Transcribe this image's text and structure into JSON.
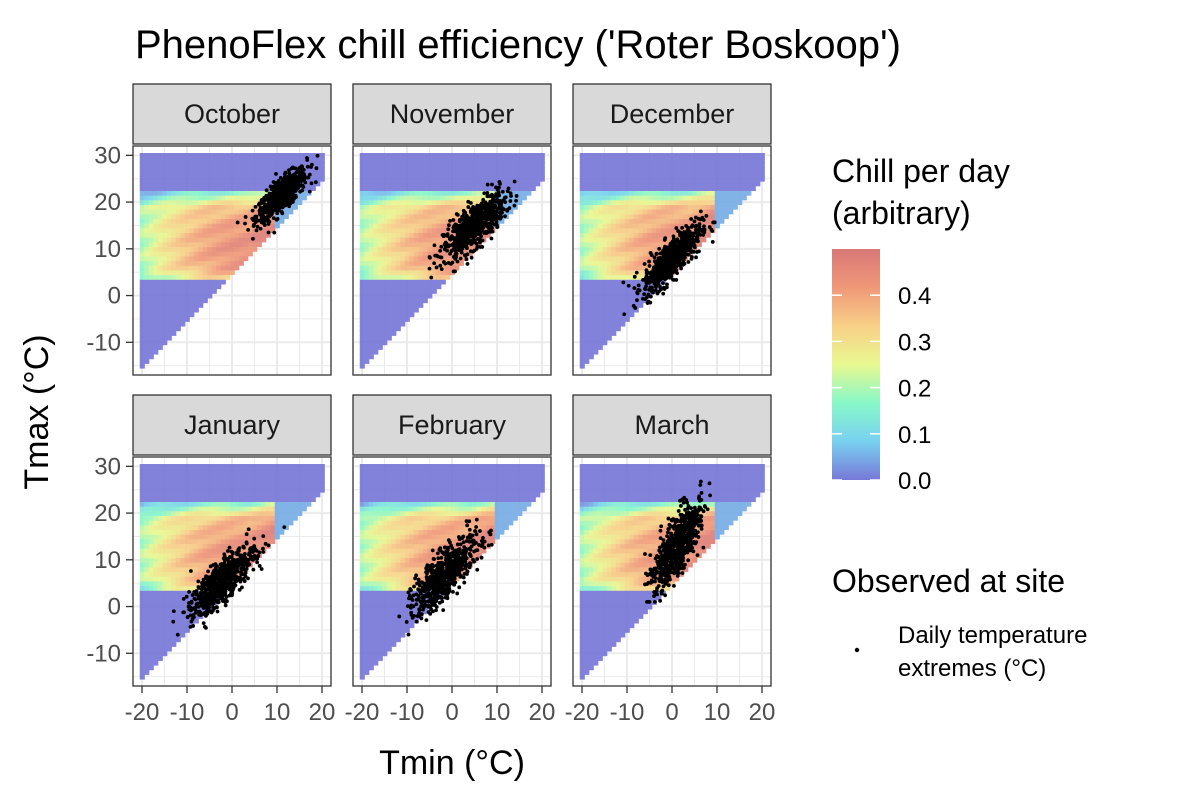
{
  "chart_data": {
    "type": "heatmap",
    "title": "PhenoFlex chill efficiency ('Roter Boskoop')",
    "xlabel": "Tmin (°C)",
    "ylabel": "Tmax (°C)",
    "xlim": [
      -22,
      22
    ],
    "ylim": [
      -17,
      32
    ],
    "x_ticks": [
      -20,
      -10,
      0,
      10,
      20
    ],
    "x_tick_labels": [
      "-20",
      "-10",
      "0",
      "10",
      "20"
    ],
    "y_ticks": [
      -10,
      0,
      10,
      20,
      30
    ],
    "y_tick_labels": [
      "-10",
      "0",
      "10",
      "20",
      "30"
    ],
    "grid": true,
    "panels": [
      {
        "label": "October",
        "observed": {
          "tmin_mean": 11,
          "tmax_mean": 21.5,
          "tmin_sd": 2.8,
          "tmax_sd": 2.8,
          "corr": 0.8,
          "tmin_range": [
            -3,
            19
          ],
          "tmax_range": [
            10,
            30
          ]
        }
      },
      {
        "label": "November",
        "observed": {
          "tmin_mean": 5,
          "tmax_mean": 15,
          "tmin_sd": 3.4,
          "tmax_sd": 3.4,
          "corr": 0.75,
          "tmin_range": [
            -5,
            17
          ],
          "tmax_range": [
            2,
            26
          ]
        }
      },
      {
        "label": "December",
        "observed": {
          "tmin_mean": 0,
          "tmax_mean": 8,
          "tmin_sd": 3.2,
          "tmax_sd": 3.6,
          "corr": 0.8,
          "tmin_range": [
            -14,
            10
          ],
          "tmax_range": [
            -4,
            18
          ]
        }
      },
      {
        "label": "January",
        "observed": {
          "tmin_mean": -2,
          "tmax_mean": 5.5,
          "tmin_sd": 3.6,
          "tmax_sd": 3.8,
          "corr": 0.8,
          "tmin_range": [
            -20,
            12
          ],
          "tmax_range": [
            -9,
            17
          ]
        }
      },
      {
        "label": "February",
        "observed": {
          "tmin_mean": -1.5,
          "tmax_mean": 7,
          "tmin_sd": 3.6,
          "tmax_sd": 4.2,
          "corr": 0.8,
          "tmin_range": [
            -12,
            12
          ],
          "tmax_range": [
            -6,
            21
          ]
        }
      },
      {
        "label": "March",
        "observed": {
          "tmin_mean": 1,
          "tmax_mean": 13,
          "tmin_sd": 2.8,
          "tmax_sd": 4.5,
          "corr": 0.75,
          "tmin_range": [
            -6,
            13
          ],
          "tmax_range": [
            1,
            27
          ]
        }
      }
    ],
    "heatmap_model": {
      "tmin_range": [
        -20,
        20
      ],
      "tmax_range": [
        -15,
        30
      ],
      "tile_size": 1,
      "chill_band_tmax": [
        4,
        22
      ],
      "chill_band_tmin_max": 9,
      "peak_tmin": 5
    },
    "colorbar": {
      "title": [
        "Chill per day",
        "(arbitrary)"
      ],
      "range": [
        0,
        0.5
      ],
      "tick_values": [
        0,
        0.1,
        0.2,
        0.3,
        0.4
      ],
      "tick_labels": [
        "0.0",
        "0.1",
        "0.2",
        "0.3",
        "0.4"
      ],
      "colors": [
        "#7878d8",
        "#78d0f0",
        "#88f8c8",
        "#e8f890",
        "#f8d088",
        "#f09878",
        "#d87878"
      ]
    },
    "legend": {
      "title": "Observed at site",
      "item_label": [
        "Daily temperature",
        "extremes (°C)"
      ],
      "position": "right"
    }
  }
}
